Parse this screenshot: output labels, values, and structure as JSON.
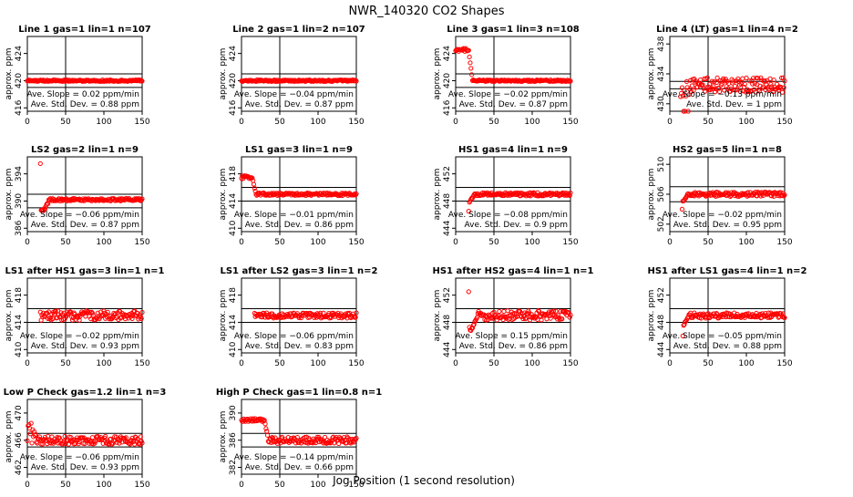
{
  "title": "NWR_140320  CO2 Shapes",
  "xlabel": "Jog Position (1 second resolution)",
  "ylabel_panel": "approx. ppm",
  "slope_prefix": "Ave. Slope = ",
  "slope_unit": "  ppm/min",
  "std_prefix": "Ave. Std. Dev. = ",
  "std_unit": "  ppm",
  "colors": {
    "points": "#ff0000",
    "lines": "#000000",
    "axes": "#000000"
  },
  "chart_data": [
    {
      "type": "scatter",
      "title": "Line 1 gas=1 lin=1 n=107",
      "xlim": [
        0,
        150
      ],
      "x_ticks": [
        0,
        50,
        100,
        150
      ],
      "ylim": [
        415.5,
        426.5
      ],
      "y_ticks": [
        416,
        420,
        424
      ],
      "hlines": [
        421,
        419
      ],
      "vline": 50,
      "slope": "0.02",
      "std": "0.88",
      "x_start": 0,
      "x_end": 150,
      "base": 420,
      "noise": 0.12,
      "shape": "flat"
    },
    {
      "type": "scatter",
      "title": "Line 2 gas=1 lin=2 n=107",
      "xlim": [
        0,
        150
      ],
      "x_ticks": [
        0,
        50,
        100,
        150
      ],
      "ylim": [
        415.5,
        426.5
      ],
      "y_ticks": [
        416,
        420,
        424
      ],
      "hlines": [
        421,
        419
      ],
      "vline": 50,
      "slope": "−0.04",
      "std": "0.87",
      "x_start": 0,
      "x_end": 150,
      "base": 420,
      "noise": 0.12,
      "shape": "flat"
    },
    {
      "type": "scatter",
      "title": "Line 3 gas=1 lin=3 n=108",
      "xlim": [
        0,
        150
      ],
      "x_ticks": [
        0,
        50,
        100,
        150
      ],
      "ylim": [
        415.5,
        426.5
      ],
      "y_ticks": [
        416,
        420,
        424
      ],
      "hlines": [
        421,
        419
      ],
      "vline": 50,
      "slope": "−0.02",
      "std": "0.87",
      "x_start": 0,
      "x_end": 150,
      "base": 420,
      "noise": 0.12,
      "shape": "high_start",
      "start_level": 424.5,
      "drop_at": 17
    },
    {
      "type": "scatter",
      "title": "Line 4 (LT) gas=1 lin=4 n=2",
      "xlim": [
        0,
        150
      ],
      "x_ticks": [
        0,
        50,
        100,
        150
      ],
      "ylim": [
        429,
        439
      ],
      "y_ticks": [
        430,
        434,
        438
      ],
      "hlines": [
        433,
        432
      ],
      "vline": 50,
      "slope": "−0.13",
      "std": "1",
      "x_start": 14,
      "x_end": 150,
      "base": 432.5,
      "noise": 1.0,
      "shape": "noisy_start",
      "start_level": 430.5
    },
    {
      "type": "scatter",
      "title": "LS2 gas=2 lin=1 n=9",
      "xlim": [
        0,
        150
      ],
      "x_ticks": [
        0,
        50,
        100,
        150
      ],
      "ylim": [
        385.5,
        396.5
      ],
      "y_ticks": [
        386,
        390,
        394
      ],
      "hlines": [
        391,
        389
      ],
      "vline": 50,
      "slope": "−0.06",
      "std": "0.87",
      "x_start": 17,
      "x_end": 150,
      "base": 390.2,
      "noise": 0.2,
      "shape": "spike_start",
      "spike": 395.5,
      "dip": 388.5
    },
    {
      "type": "scatter",
      "title": "LS1 gas=3 lin=1 n=9",
      "xlim": [
        0,
        150
      ],
      "x_ticks": [
        0,
        50,
        100,
        150
      ],
      "ylim": [
        409.5,
        420.5
      ],
      "y_ticks": [
        410,
        414,
        418
      ],
      "hlines": [
        416,
        414
      ],
      "vline": 50,
      "slope": "−0.01",
      "std": "0.86",
      "x_start": 0,
      "x_end": 150,
      "base": 415,
      "noise": 0.2,
      "shape": "high_start",
      "start_level": 417.5,
      "drop_at": 14
    },
    {
      "type": "scatter",
      "title": "HS1 gas=4 lin=1 n=9",
      "xlim": [
        0,
        150
      ],
      "x_ticks": [
        0,
        50,
        100,
        150
      ],
      "ylim": [
        443.5,
        454.5
      ],
      "y_ticks": [
        444,
        448,
        452
      ],
      "hlines": [
        450,
        448
      ],
      "vline": 50,
      "slope": "−0.08",
      "std": "0.9",
      "x_start": 17,
      "x_end": 150,
      "base": 449,
      "noise": 0.25,
      "shape": "dip_start",
      "dip": 446.5
    },
    {
      "type": "scatter",
      "title": "HS2 gas=5 lin=1 n=8",
      "xlim": [
        0,
        150
      ],
      "x_ticks": [
        0,
        50,
        100,
        150
      ],
      "ylim": [
        501,
        511
      ],
      "y_ticks": [
        502,
        506,
        510
      ],
      "hlines": [
        507,
        505
      ],
      "vline": 50,
      "slope": "−0.02",
      "std": "0.95",
      "x_start": 16,
      "x_end": 150,
      "base": 506,
      "noise": 0.3,
      "shape": "dip_start",
      "dip": 504
    },
    {
      "type": "scatter",
      "title": "LS1 after HS1 gas=3 lin=1 n=1",
      "xlim": [
        0,
        150
      ],
      "x_ticks": [
        0,
        50,
        100,
        150
      ],
      "ylim": [
        409.5,
        420.5
      ],
      "y_ticks": [
        410,
        414,
        418
      ],
      "hlines": [
        416,
        414
      ],
      "vline": 50,
      "slope": "−0.02",
      "std": "0.93",
      "x_start": 17,
      "x_end": 150,
      "base": 415,
      "noise": 0.7,
      "shape": "flat"
    },
    {
      "type": "scatter",
      "title": "LS1 after LS2 gas=3 lin=1 n=2",
      "xlim": [
        0,
        150
      ],
      "x_ticks": [
        0,
        50,
        100,
        150
      ],
      "ylim": [
        409.5,
        420.5
      ],
      "y_ticks": [
        410,
        414,
        418
      ],
      "hlines": [
        416,
        414
      ],
      "vline": 50,
      "slope": "−0.06",
      "std": "0.83",
      "x_start": 17,
      "x_end": 150,
      "base": 415,
      "noise": 0.4,
      "shape": "flat"
    },
    {
      "type": "scatter",
      "title": "HS1 after HS2 gas=4 lin=1 n=1",
      "xlim": [
        0,
        150
      ],
      "x_ticks": [
        0,
        50,
        100,
        150
      ],
      "ylim": [
        443.5,
        454.5
      ],
      "y_ticks": [
        444,
        448,
        452
      ],
      "hlines": [
        450,
        448
      ],
      "vline": 50,
      "slope": "0.15",
      "std": "0.86",
      "x_start": 17,
      "x_end": 150,
      "base": 449,
      "noise": 0.7,
      "shape": "spike_start",
      "spike": 452.5,
      "dip": 447
    },
    {
      "type": "scatter",
      "title": "HS1 after LS1 gas=4 lin=1 n=2",
      "xlim": [
        0,
        150
      ],
      "x_ticks": [
        0,
        50,
        100,
        150
      ],
      "ylim": [
        443.5,
        454.5
      ],
      "y_ticks": [
        444,
        448,
        452
      ],
      "hlines": [
        450,
        448
      ],
      "vline": 50,
      "slope": "−0.05",
      "std": "0.88",
      "x_start": 17,
      "x_end": 150,
      "base": 449,
      "noise": 0.4,
      "shape": "dip_start",
      "dip": 446
    },
    {
      "type": "scatter",
      "title": "Low P Check gas=1.2 lin=1 n=3",
      "xlim": [
        0,
        150
      ],
      "x_ticks": [
        0,
        50,
        100,
        150
      ],
      "ylim": [
        461,
        472
      ],
      "y_ticks": [
        462,
        466,
        470
      ],
      "hlines": [
        467,
        465
      ],
      "vline": 50,
      "slope": "−0.06",
      "std": "0.93",
      "x_start": 0,
      "x_end": 150,
      "base": 466,
      "noise": 0.6,
      "shape": "noisy_start",
      "start_level": 467
    },
    {
      "type": "scatter",
      "title": "High P Check gas=1 lin=0.8 n=1",
      "xlim": [
        0,
        150
      ],
      "x_ticks": [
        0,
        50,
        100,
        150
      ],
      "ylim": [
        381,
        392
      ],
      "y_ticks": [
        382,
        386,
        390
      ],
      "hlines": [
        387,
        385
      ],
      "vline": 50,
      "slope": "−0.14",
      "std": "0.66",
      "x_start": 0,
      "x_end": 150,
      "base": 386,
      "noise": 0.5,
      "shape": "high_start",
      "start_level": 389,
      "drop_at": 30
    }
  ]
}
